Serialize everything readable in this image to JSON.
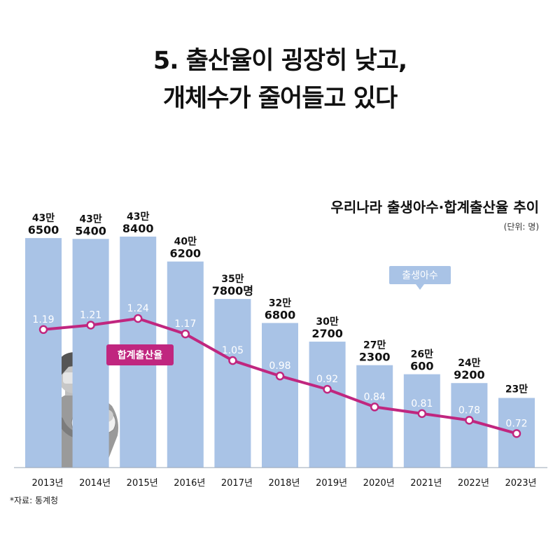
{
  "headline": {
    "line1": "5. 출산율이 굉장히 낮고,",
    "line2": "개체수가 줄어들고 있다"
  },
  "chart_data": {
    "type": "bar",
    "title": "우리나라 출생아수·합계출산율 추이",
    "unit": "(단위: 명)",
    "categories": [
      "2013년",
      "2014년",
      "2015년",
      "2016년",
      "2017년",
      "2018년",
      "2019년",
      "2020년",
      "2021년",
      "2022년",
      "2023년"
    ],
    "series": [
      {
        "name": "출생아수",
        "type": "bar",
        "values": [
          436500,
          435400,
          438400,
          406200,
          357800,
          326800,
          302700,
          272300,
          260600,
          249200,
          230000
        ],
        "labels_top": [
          "43만",
          "43만",
          "43만",
          "40만",
          "35만",
          "32만",
          "30만",
          "27만",
          "26만",
          "24만",
          "23만"
        ],
        "labels_bottom": [
          "6500",
          "5400",
          "8400",
          "6200",
          "7800명",
          "6800",
          "2700",
          "2300",
          "600",
          "9200",
          ""
        ],
        "color": "#a9c3e6"
      },
      {
        "name": "합계출산율",
        "type": "line",
        "values": [
          1.19,
          1.21,
          1.24,
          1.17,
          1.05,
          0.98,
          0.92,
          0.84,
          0.81,
          0.78,
          0.72
        ],
        "labels": [
          "1.19",
          "1.21",
          "1.24",
          "1.17",
          "1.05",
          "0.98",
          "0.92",
          "0.84",
          "0.81",
          "0.78",
          "0.72"
        ],
        "color": "#c0267f"
      }
    ],
    "colors": {
      "bar": "#a9c3e6",
      "line": "#c0267f",
      "bar_legend_bg": "#a9c3e6"
    }
  },
  "source": "*자료: 통계청"
}
